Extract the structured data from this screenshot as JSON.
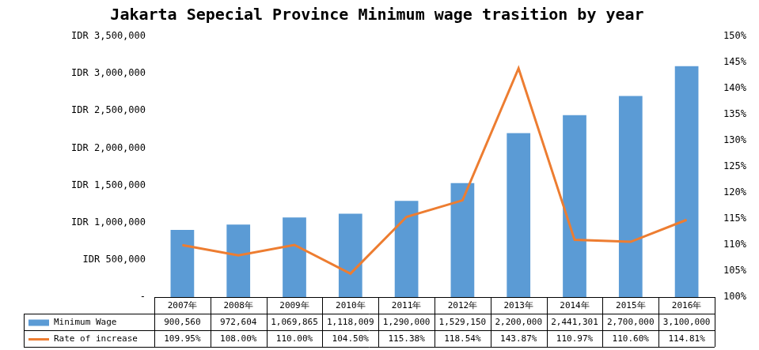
{
  "chart_data": {
    "type": "bar",
    "title": "Jakarta Sepecial Province Minimum wage trasition by year",
    "categories": [
      "2007年",
      "2008年",
      "2009年",
      "2010年",
      "2011年",
      "2012年",
      "2013年",
      "2014年",
      "2015年",
      "2016年"
    ],
    "series": [
      {
        "name": "Minimum Wage",
        "type": "bar",
        "color": "#5b9bd5",
        "values": [
          900560,
          972604,
          1069865,
          1118009,
          1290000,
          1529150,
          2200000,
          2441301,
          2700000,
          3100000
        ],
        "value_labels": [
          "900,560",
          "972,604",
          "1,069,865",
          "1,118,009",
          "1,290,000",
          "1,529,150",
          "2,200,000",
          "2,441,301",
          "2,700,000",
          "3,100,000"
        ]
      },
      {
        "name": "Rate of increase",
        "type": "line",
        "color": "#ed7d31",
        "axis": "y2",
        "marker": "none",
        "line_style": "solid",
        "values": [
          109.95,
          108.0,
          110.0,
          104.5,
          115.38,
          118.54,
          143.87,
          110.97,
          110.6,
          114.81
        ],
        "value_labels": [
          "109.95%",
          "108.00%",
          "110.00%",
          "104.50%",
          "115.38%",
          "118.54%",
          "143.87%",
          "110.97%",
          "110.60%",
          "114.81%"
        ]
      }
    ],
    "ylim": [
      0,
      3500000
    ],
    "yticks": [
      {
        "value": 0,
        "label": "-"
      },
      {
        "value": 500000,
        "label": "IDR 500,000"
      },
      {
        "value": 1000000,
        "label": "IDR 1,000,000"
      },
      {
        "value": 1500000,
        "label": "IDR 1,500,000"
      },
      {
        "value": 2000000,
        "label": "IDR 2,000,000"
      },
      {
        "value": 2500000,
        "label": "IDR 2,500,000"
      },
      {
        "value": 3000000,
        "label": "IDR 3,000,000"
      },
      {
        "value": 3500000,
        "label": "IDR 3,500,000"
      }
    ],
    "y2lim": [
      100,
      150
    ],
    "y2ticks": [
      {
        "value": 100,
        "label": "100%"
      },
      {
        "value": 105,
        "label": "105%"
      },
      {
        "value": 110,
        "label": "110%"
      },
      {
        "value": 115,
        "label": "115%"
      },
      {
        "value": 120,
        "label": "120%"
      },
      {
        "value": 125,
        "label": "125%"
      },
      {
        "value": 130,
        "label": "130%"
      },
      {
        "value": 135,
        "label": "135%"
      },
      {
        "value": 140,
        "label": "140%"
      },
      {
        "value": 145,
        "label": "145%"
      },
      {
        "value": 150,
        "label": "150%"
      }
    ],
    "grid": false
  }
}
